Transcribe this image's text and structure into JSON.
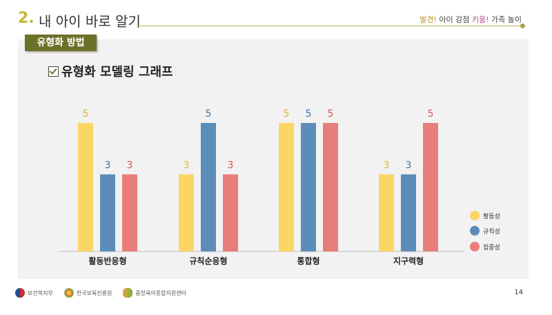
{
  "header": {
    "number": "2.",
    "title": "내 아이 바로 알기",
    "tagline": {
      "part1": "발견!",
      "part2": " 아이 강점 ",
      "part3": "키움!",
      "part4": " 가족 놀이"
    }
  },
  "section_tab": "유형화 방법",
  "chart_heading": "유형화 모델링 그래프",
  "chart_data": {
    "type": "bar",
    "title": "유형화 모델링 그래프",
    "categories": [
      "활동반응형",
      "규칙순응형",
      "통합형",
      "지구력형"
    ],
    "series": [
      {
        "name": "활동성",
        "values": [
          5,
          3,
          5,
          3
        ],
        "color": "#fad667"
      },
      {
        "name": "규칙성",
        "values": [
          3,
          5,
          5,
          3
        ],
        "color": "#5b8db8"
      },
      {
        "name": "집중성",
        "values": [
          3,
          3,
          5,
          5
        ],
        "color": "#e87e7a"
      }
    ],
    "value_label_colors": [
      "#e0b42e",
      "#3f74a6",
      "#d9534f"
    ],
    "ylim": [
      0,
      5
    ],
    "grid": false,
    "legend": "right-bottom",
    "xlabel": "",
    "ylabel": ""
  },
  "footer": {
    "logos": [
      "보건복지부",
      "한국보육진흥원",
      "중앙육아종합지원센터"
    ],
    "page": "14"
  }
}
